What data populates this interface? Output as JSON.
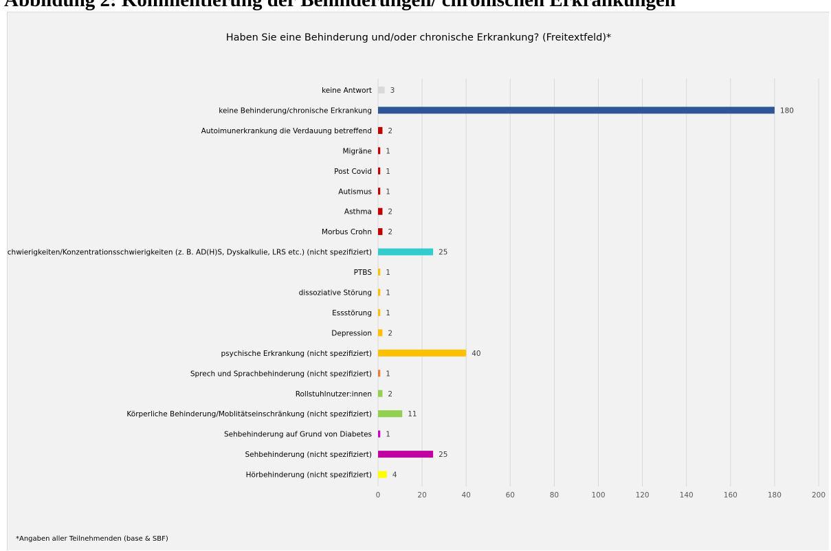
{
  "page": {
    "heading": "Abbildung 2: Kommentierung der Behinderungen/ chronischen Erkrankungen"
  },
  "chart_data": {
    "type": "bar",
    "orientation": "horizontal",
    "title": "Haben Sie eine Behinderung und/oder chronische Erkrankung? (Freitextfeld)*",
    "footnote": "*Angaben aller Teilnehmenden (base & SBF)",
    "xlabel": "",
    "ylabel": "",
    "xlim": [
      0,
      200
    ],
    "xticks": [
      0,
      20,
      40,
      60,
      80,
      100,
      120,
      140,
      160,
      180,
      200
    ],
    "grid": true,
    "legend": "none",
    "categories": [
      "keine Antwort",
      "keine Behinderung/chronische Erkrankung",
      "Autoimunerkrankung die Verdauung betreffend",
      "Migräne",
      "Post Covid",
      "Autismus",
      "Asthma",
      "Morbus Crohn",
      "Lernschwierigkeiten/Konzentrationsschwierigkeiten (z. B. AD(H)S, Dyskalkulie, LRS etc.) (nicht spezifiziert)",
      "PTBS",
      "dissoziative Störung",
      "Essstörung",
      "Depression",
      "psychische Erkrankung (nicht spezifiziert)",
      "Sprech und Sprachbehinderung (nicht spezifiziert)",
      "Rollstuhlnutzer:innen",
      "Körperliche Behinderung/Moblitätseinschränkung (nicht spezifiziert)",
      "Sehbehinderung auf Grund von Diabetes",
      "Sehbehinderung (nicht spezifiziert)",
      "Hörbehinderung (nicht spezifiziert)"
    ],
    "values": [
      3,
      180,
      2,
      1,
      1,
      1,
      2,
      2,
      25,
      1,
      1,
      1,
      2,
      40,
      1,
      2,
      11,
      1,
      25,
      4
    ],
    "colors": [
      "#d9d9d9",
      "#2f5597",
      "#c00000",
      "#c00000",
      "#c00000",
      "#c00000",
      "#c00000",
      "#c00000",
      "#33cccc",
      "#ffc000",
      "#ffc000",
      "#ffc000",
      "#ffc000",
      "#ffc000",
      "#ed7d31",
      "#92d050",
      "#92d050",
      "#cc00cc",
      "#c000a0",
      "#ffff00"
    ]
  }
}
